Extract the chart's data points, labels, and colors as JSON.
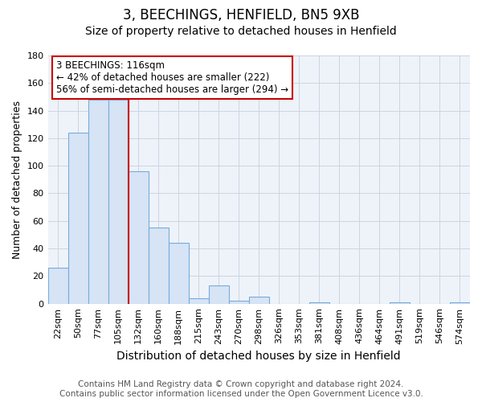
{
  "title": "3, BEECHINGS, HENFIELD, BN5 9XB",
  "subtitle": "Size of property relative to detached houses in Henfield",
  "xlabel": "Distribution of detached houses by size in Henfield",
  "ylabel": "Number of detached properties",
  "bin_labels": [
    "22sqm",
    "50sqm",
    "77sqm",
    "105sqm",
    "132sqm",
    "160sqm",
    "188sqm",
    "215sqm",
    "243sqm",
    "270sqm",
    "298sqm",
    "326sqm",
    "353sqm",
    "381sqm",
    "408sqm",
    "436sqm",
    "464sqm",
    "491sqm",
    "519sqm",
    "546sqm",
    "574sqm"
  ],
  "bar_heights": [
    26,
    124,
    148,
    148,
    96,
    55,
    44,
    4,
    13,
    2,
    5,
    0,
    0,
    1,
    0,
    0,
    0,
    1,
    0,
    0,
    1
  ],
  "bar_color": "#d6e4f5",
  "bar_edge_color": "#7aabda",
  "background_color": "#ffffff",
  "grid_color": "#c8d0dc",
  "vline_x": 3.5,
  "vline_color": "#cc0000",
  "annotation_text": "3 BEECHINGS: 116sqm\n← 42% of detached houses are smaller (222)\n56% of semi-detached houses are larger (294) →",
  "annotation_box_color": "#ffffff",
  "annotation_box_edge_color": "#cc0000",
  "ylim": [
    0,
    180
  ],
  "yticks": [
    0,
    20,
    40,
    60,
    80,
    100,
    120,
    140,
    160,
    180
  ],
  "footer_text": "Contains HM Land Registry data © Crown copyright and database right 2024.\nContains public sector information licensed under the Open Government Licence v3.0.",
  "title_fontsize": 12,
  "subtitle_fontsize": 10,
  "xlabel_fontsize": 10,
  "ylabel_fontsize": 9,
  "tick_fontsize": 8,
  "annotation_fontsize": 8.5,
  "footer_fontsize": 7.5
}
